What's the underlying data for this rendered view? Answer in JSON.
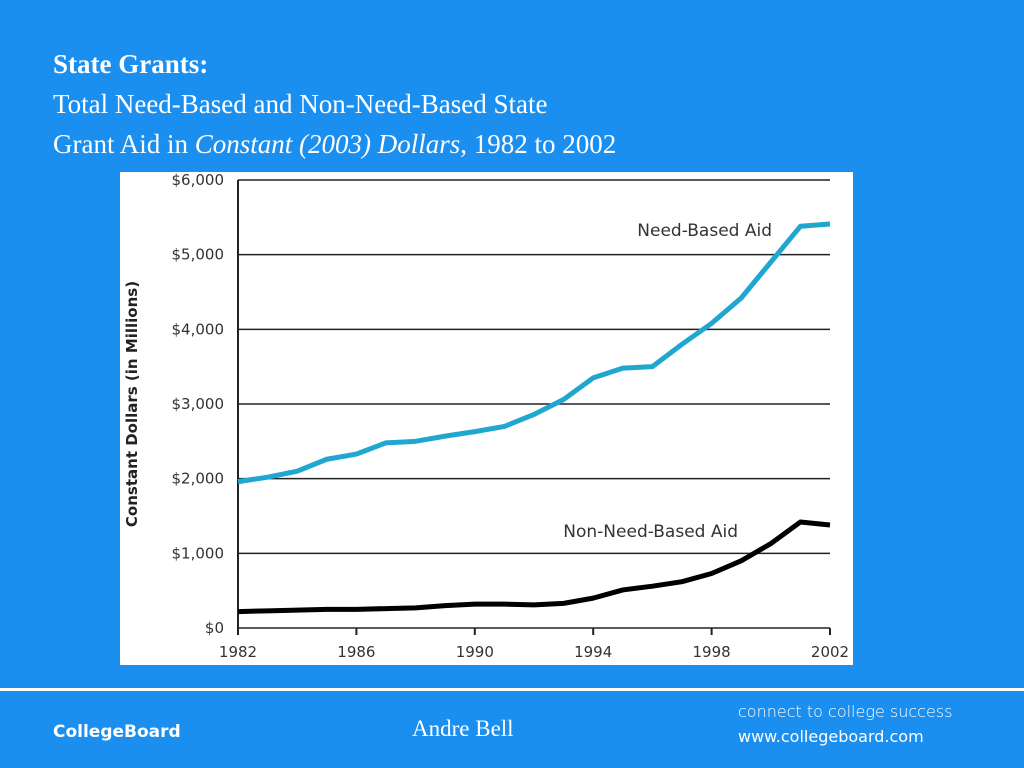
{
  "chart_data": {
    "type": "line",
    "title": "State Grants:",
    "subtitle": [
      "Total Need-Based and Non-Need-Based State",
      "Grant Aid in ",
      "Constant (2003) Dollars",
      ", 1982 to 2002"
    ],
    "y_label": "Constant Dollars (in Millions)",
    "x": [
      1982,
      1983,
      1984,
      1985,
      1986,
      1987,
      1988,
      1989,
      1990,
      1991,
      1992,
      1993,
      1994,
      1995,
      1996,
      1997,
      1998,
      1999,
      2000,
      2001,
      2002
    ],
    "series": [
      {
        "name": "Need-Based Aid",
        "color": "#1fa7d0",
        "values": [
          1960,
          2020,
          2100,
          2260,
          2330,
          2480,
          2500,
          2570,
          2630,
          2700,
          2860,
          3060,
          3350,
          3480,
          3500,
          3800,
          4080,
          4420,
          4900,
          5380,
          5410
        ]
      },
      {
        "name": "Non-Need-Based Aid",
        "color": "#000000",
        "values": [
          220,
          230,
          240,
          250,
          250,
          260,
          270,
          300,
          320,
          320,
          310,
          330,
          400,
          510,
          560,
          620,
          730,
          900,
          1130,
          1420,
          1380
        ]
      }
    ],
    "xlim": [
      1982,
      2002
    ],
    "xticks": [
      1982,
      1986,
      1990,
      1994,
      1998,
      2002
    ],
    "ylim": [
      0,
      6000
    ],
    "yticks": [
      {
        "value": 0,
        "label": "$0"
      },
      {
        "value": 1000,
        "label": "$1,000"
      },
      {
        "value": 2000,
        "label": "$2,000"
      },
      {
        "value": 3000,
        "label": "$3,000"
      },
      {
        "value": 4000,
        "label": "$4,000"
      },
      {
        "value": 5000,
        "label": "$5,000"
      },
      {
        "value": 6000,
        "label": "$6,000"
      }
    ],
    "grid": true
  },
  "footer": {
    "logo": "CollegeBoard",
    "presenter": "Andre Bell",
    "tagline": "connect to college success",
    "url": "www.collegeboard.com"
  }
}
